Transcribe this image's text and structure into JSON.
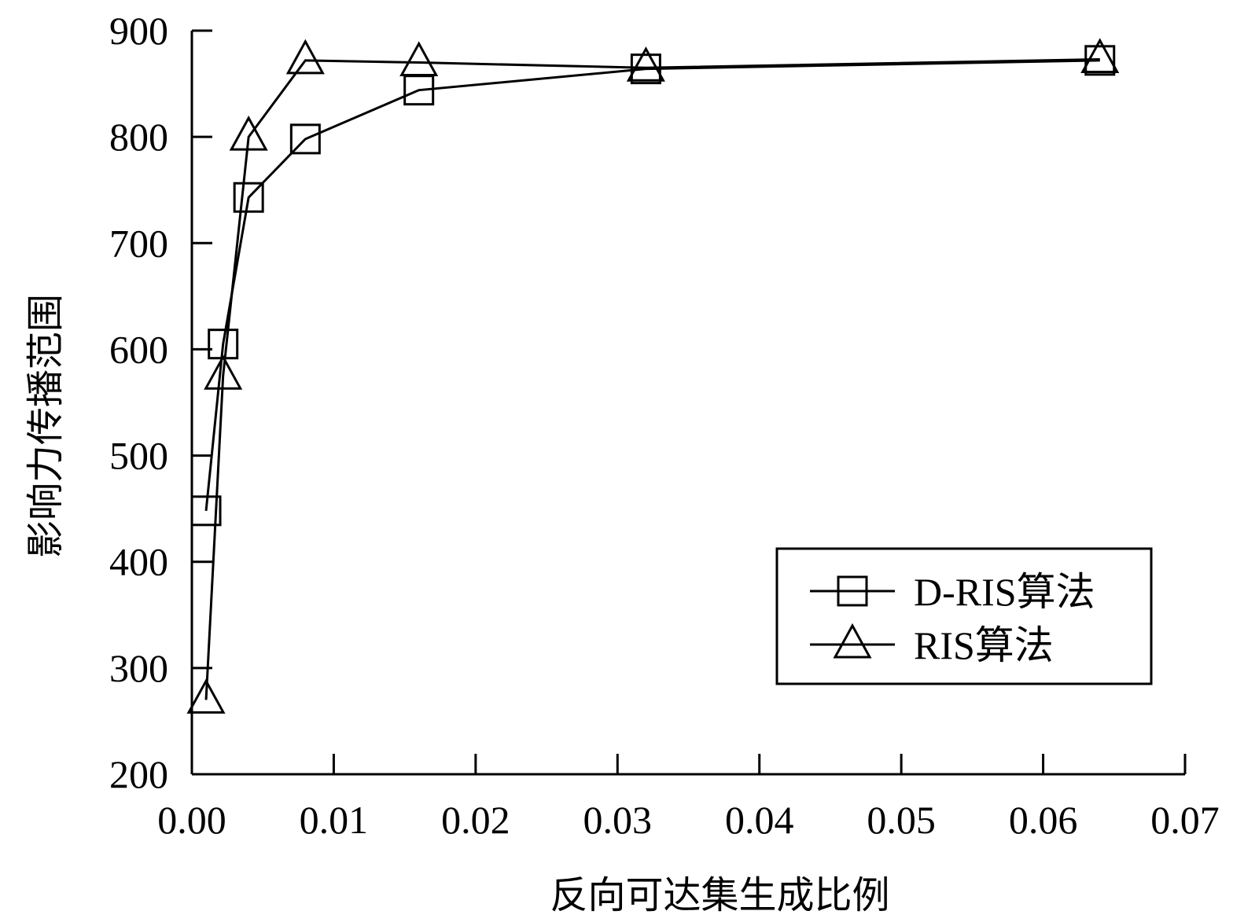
{
  "chart_data": {
    "type": "line",
    "xlabel": "反向可达集生成比例",
    "ylabel": "影响力传播范围",
    "xlim": [
      0,
      0.07
    ],
    "ylim": [
      200,
      900
    ],
    "x_ticks": [
      0.0,
      0.01,
      0.02,
      0.03,
      0.04,
      0.05,
      0.06,
      0.07
    ],
    "x_tick_labels": [
      "0.00",
      "0.01",
      "0.02",
      "0.03",
      "0.04",
      "0.05",
      "0.06",
      "0.07"
    ],
    "y_ticks": [
      200,
      300,
      400,
      500,
      600,
      700,
      800,
      900
    ],
    "y_tick_labels": [
      "200",
      "300",
      "400",
      "500",
      "600",
      "700",
      "800",
      "900"
    ],
    "grid": false,
    "legend_position": "bottom-right",
    "series": [
      {
        "name": "D-RIS算法",
        "marker": "square",
        "x": [
          0.001,
          0.0022,
          0.004,
          0.008,
          0.016,
          0.032,
          0.064
        ],
        "y": [
          448,
          605,
          743,
          798,
          844,
          864,
          872
        ]
      },
      {
        "name": "RIS算法",
        "marker": "triangle",
        "x": [
          0.001,
          0.0022,
          0.004,
          0.008,
          0.016,
          0.032,
          0.064
        ],
        "y": [
          270,
          575,
          800,
          872,
          870,
          865,
          873
        ]
      }
    ]
  }
}
